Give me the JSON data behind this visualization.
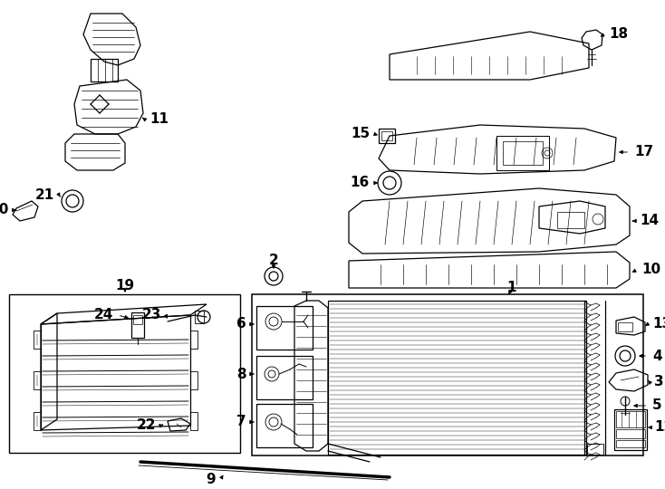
{
  "bg_color": "#ffffff",
  "line_color": "#000000",
  "fig_w": 7.34,
  "fig_h": 5.4,
  "dpi": 100
}
